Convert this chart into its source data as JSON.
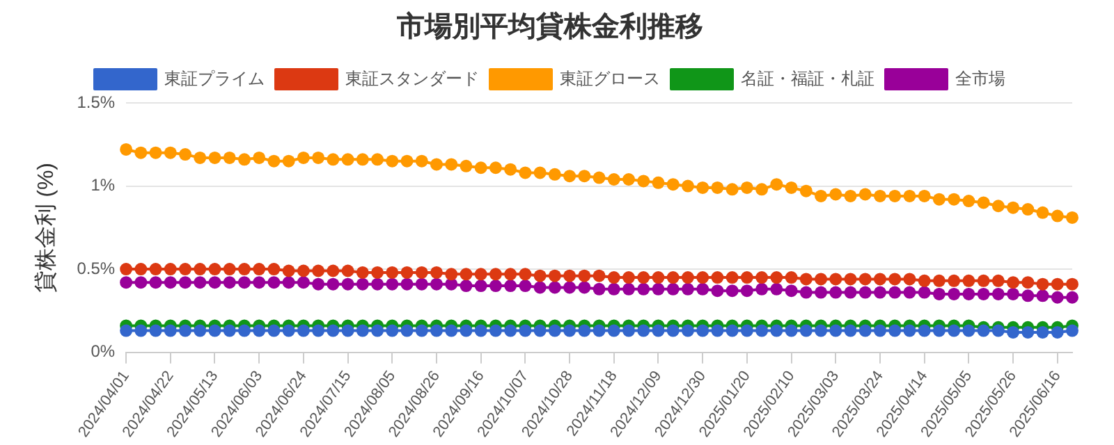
{
  "chart_data": {
    "type": "line",
    "title": "市場別平均貸株金利推移",
    "ylabel": "貸株金利 (%)",
    "categories": [
      "2024/04/01",
      null,
      null,
      "2024/04/22",
      null,
      null,
      "2024/05/13",
      null,
      null,
      "2024/06/03",
      null,
      null,
      "2024/06/24",
      null,
      null,
      "2024/07/15",
      null,
      null,
      "2024/08/05",
      null,
      null,
      "2024/08/26",
      null,
      null,
      "2024/09/16",
      null,
      null,
      "2024/10/07",
      null,
      null,
      "2024/10/28",
      null,
      null,
      "2024/11/18",
      null,
      null,
      "2024/12/09",
      null,
      null,
      "2024/12/30",
      null,
      null,
      "2025/01/20",
      null,
      null,
      "2025/02/10",
      null,
      null,
      "2025/03/03",
      null,
      null,
      "2025/03/24",
      null,
      null,
      "2025/04/14",
      null,
      null,
      "2025/05/05",
      null,
      null,
      "2025/05/26",
      null,
      null,
      "2025/06/16",
      null
    ],
    "series": [
      {
        "name": "東証プライム",
        "color": "#3366cc",
        "values": [
          0.13,
          0.13,
          0.13,
          0.13,
          0.13,
          0.13,
          0.13,
          0.13,
          0.13,
          0.13,
          0.13,
          0.13,
          0.13,
          0.13,
          0.13,
          0.13,
          0.13,
          0.13,
          0.13,
          0.13,
          0.13,
          0.13,
          0.13,
          0.13,
          0.13,
          0.13,
          0.13,
          0.13,
          0.13,
          0.13,
          0.13,
          0.13,
          0.13,
          0.13,
          0.13,
          0.13,
          0.13,
          0.13,
          0.13,
          0.13,
          0.13,
          0.13,
          0.13,
          0.13,
          0.13,
          0.13,
          0.13,
          0.13,
          0.13,
          0.13,
          0.13,
          0.13,
          0.13,
          0.13,
          0.13,
          0.13,
          0.13,
          0.13,
          0.13,
          0.13,
          0.12,
          0.12,
          0.12,
          0.12,
          0.13
        ]
      },
      {
        "name": "東証スタンダード",
        "color": "#dc3912",
        "values": [
          0.5,
          0.5,
          0.5,
          0.5,
          0.5,
          0.5,
          0.5,
          0.5,
          0.5,
          0.5,
          0.5,
          0.49,
          0.49,
          0.49,
          0.49,
          0.49,
          0.48,
          0.48,
          0.48,
          0.48,
          0.48,
          0.48,
          0.47,
          0.47,
          0.47,
          0.47,
          0.47,
          0.47,
          0.46,
          0.46,
          0.46,
          0.46,
          0.46,
          0.45,
          0.45,
          0.45,
          0.45,
          0.45,
          0.45,
          0.45,
          0.45,
          0.45,
          0.45,
          0.45,
          0.45,
          0.45,
          0.44,
          0.44,
          0.44,
          0.44,
          0.44,
          0.44,
          0.44,
          0.44,
          0.43,
          0.43,
          0.43,
          0.43,
          0.43,
          0.43,
          0.42,
          0.42,
          0.41,
          0.41,
          0.41
        ]
      },
      {
        "name": "東証グロース",
        "color": "#ff9900",
        "values": [
          1.22,
          1.2,
          1.2,
          1.2,
          1.19,
          1.17,
          1.17,
          1.17,
          1.16,
          1.17,
          1.15,
          1.15,
          1.17,
          1.17,
          1.16,
          1.16,
          1.16,
          1.16,
          1.15,
          1.15,
          1.15,
          1.13,
          1.13,
          1.12,
          1.11,
          1.11,
          1.1,
          1.08,
          1.08,
          1.07,
          1.06,
          1.06,
          1.05,
          1.04,
          1.04,
          1.03,
          1.02,
          1.01,
          1.0,
          0.99,
          0.99,
          0.98,
          0.99,
          0.98,
          1.01,
          0.99,
          0.97,
          0.94,
          0.95,
          0.94,
          0.95,
          0.94,
          0.94,
          0.94,
          0.94,
          0.92,
          0.92,
          0.91,
          0.9,
          0.88,
          0.87,
          0.86,
          0.84,
          0.82,
          0.81
        ]
      },
      {
        "name": "名証・福証・札証",
        "color": "#109618",
        "values": [
          0.16,
          0.16,
          0.16,
          0.16,
          0.16,
          0.16,
          0.16,
          0.16,
          0.16,
          0.16,
          0.16,
          0.16,
          0.16,
          0.16,
          0.16,
          0.16,
          0.16,
          0.16,
          0.16,
          0.16,
          0.16,
          0.16,
          0.16,
          0.16,
          0.16,
          0.16,
          0.16,
          0.16,
          0.16,
          0.16,
          0.16,
          0.16,
          0.16,
          0.16,
          0.16,
          0.16,
          0.16,
          0.16,
          0.16,
          0.16,
          0.16,
          0.16,
          0.16,
          0.16,
          0.16,
          0.16,
          0.16,
          0.16,
          0.16,
          0.16,
          0.16,
          0.16,
          0.16,
          0.16,
          0.16,
          0.16,
          0.16,
          0.16,
          0.15,
          0.15,
          0.15,
          0.15,
          0.15,
          0.15,
          0.16
        ]
      },
      {
        "name": "全市場",
        "color": "#990099",
        "values": [
          0.42,
          0.42,
          0.42,
          0.42,
          0.42,
          0.42,
          0.42,
          0.42,
          0.42,
          0.42,
          0.42,
          0.42,
          0.42,
          0.41,
          0.41,
          0.41,
          0.41,
          0.41,
          0.41,
          0.41,
          0.41,
          0.41,
          0.41,
          0.4,
          0.4,
          0.4,
          0.4,
          0.4,
          0.39,
          0.39,
          0.39,
          0.39,
          0.38,
          0.38,
          0.38,
          0.38,
          0.38,
          0.38,
          0.38,
          0.38,
          0.37,
          0.37,
          0.37,
          0.38,
          0.38,
          0.37,
          0.36,
          0.36,
          0.36,
          0.36,
          0.36,
          0.36,
          0.36,
          0.36,
          0.36,
          0.35,
          0.35,
          0.35,
          0.35,
          0.35,
          0.35,
          0.34,
          0.34,
          0.33,
          0.33
        ]
      }
    ],
    "ylim": [
      0,
      1.5
    ],
    "yticks": [
      {
        "value": 0,
        "label": "0%"
      },
      {
        "value": 0.5,
        "label": "0.5%"
      },
      {
        "value": 1,
        "label": "1%"
      },
      {
        "value": 1.5,
        "label": "1.5%"
      }
    ],
    "grid": "y",
    "legend": "top",
    "marker": "circle",
    "line_style": "solid"
  }
}
